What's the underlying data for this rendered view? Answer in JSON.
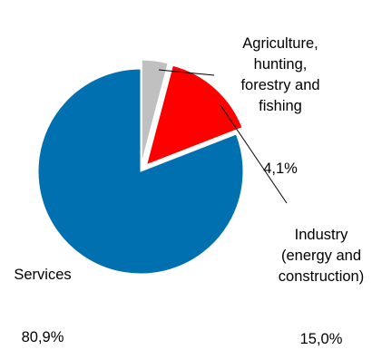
{
  "chart_data": {
    "type": "pie",
    "title": "",
    "slices": [
      {
        "label": "Agriculture,\nhunting,\nforestry and\nfishing",
        "value_label": "4,1%",
        "value": 4.1,
        "color": "#C0C0C0",
        "exploded": true
      },
      {
        "label": "Industry\n(energy and\nconstruction)",
        "value_label": "15,0%",
        "value": 15.0,
        "color": "#FF0000",
        "exploded": true
      },
      {
        "label": "Services",
        "value_label": "80,9%",
        "value": 80.9,
        "color": "#0070B0",
        "exploded": false
      }
    ],
    "start_angle_deg": 0,
    "direction": "clockwise",
    "legend": "none",
    "leader_lines": true
  }
}
